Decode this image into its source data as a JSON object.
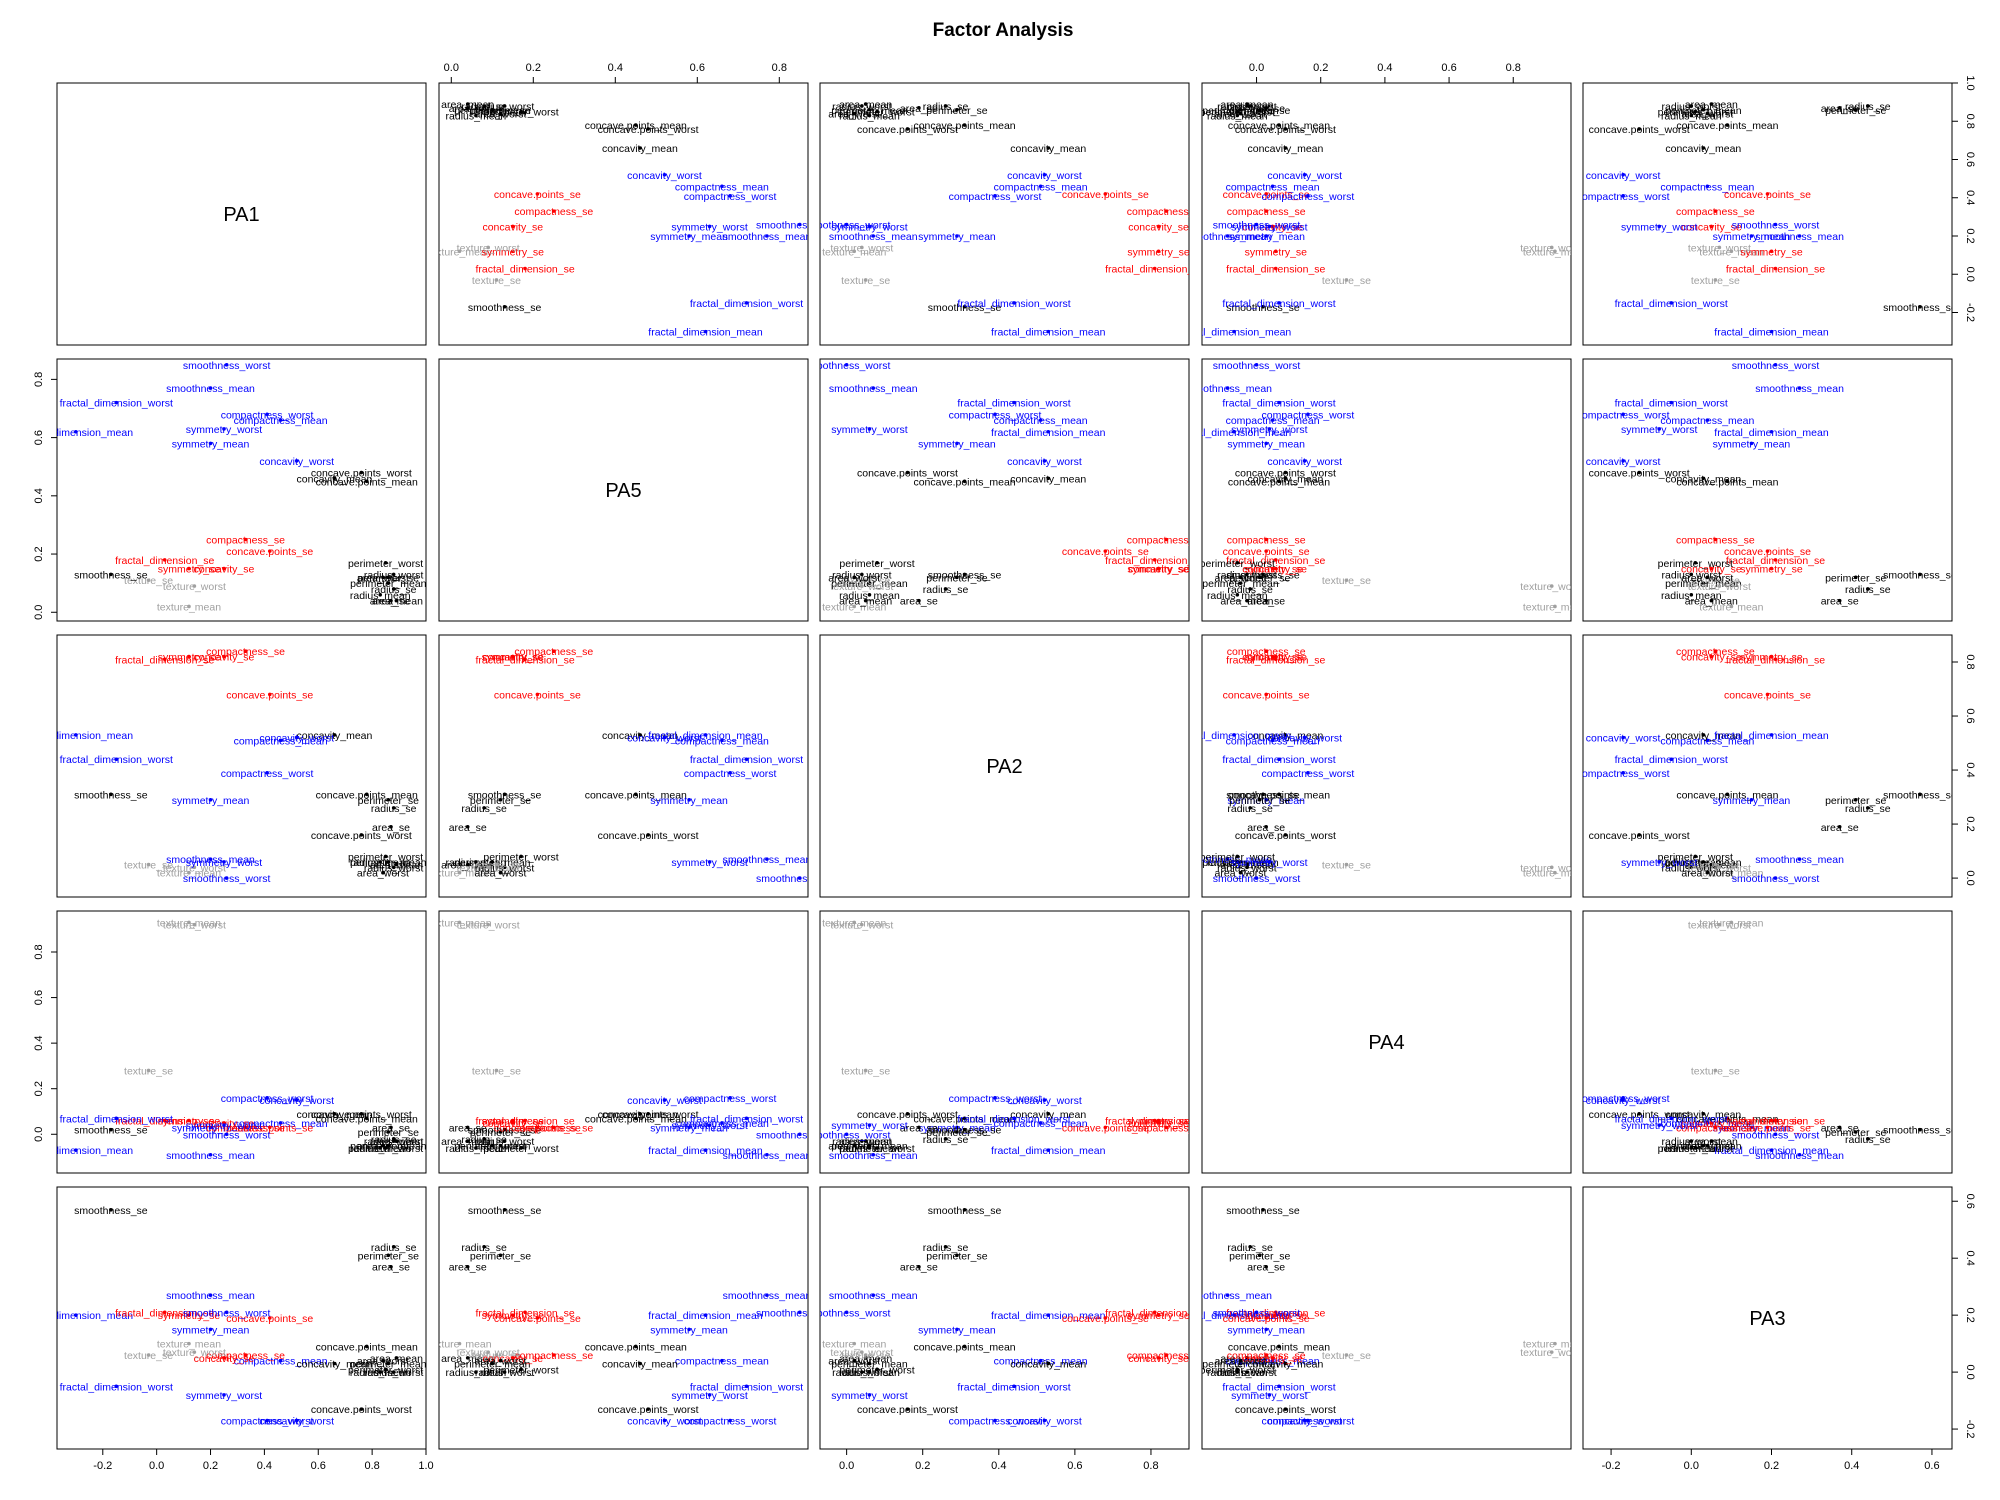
{
  "chart_data": {
    "type": "scatter",
    "title": "Factor Analysis",
    "factors": [
      "PA1",
      "PA5",
      "PA2",
      "PA4",
      "PA3"
    ],
    "axis_ranges": {
      "PA1": [
        -0.37,
        1.0
      ],
      "PA5": [
        -0.03,
        0.87
      ],
      "PA2": [
        -0.07,
        0.9
      ],
      "PA4": [
        -0.17,
        0.98
      ],
      "PA3": [
        -0.27,
        0.65
      ]
    },
    "ticks": {
      "PA1": {
        "values": [
          -0.2,
          0.0,
          0.2,
          0.4,
          0.6,
          0.8,
          1.0
        ],
        "labels": [
          "-0.2",
          "0.0",
          "0.2",
          "0.4",
          "0.6",
          "0.8",
          "1.0"
        ]
      },
      "PA5": {
        "values": [
          0.0,
          0.2,
          0.4,
          0.6,
          0.8
        ],
        "labels": [
          "0.0",
          "0.2",
          "0.4",
          "0.6",
          "0.8"
        ]
      },
      "PA2": {
        "values": [
          0.0,
          0.2,
          0.4,
          0.6,
          0.8
        ],
        "labels": [
          "0.0",
          "0.2",
          "0.4",
          "0.6",
          "0.8"
        ]
      },
      "PA4": {
        "values": [
          0.0,
          0.2,
          0.4,
          0.6,
          0.8
        ],
        "labels": [
          "0.0",
          "0.2",
          "0.4",
          "0.6",
          "0.8"
        ]
      },
      "PA3": {
        "values": [
          -0.2,
          0.0,
          0.2,
          0.4,
          0.6
        ],
        "labels": [
          "-0.2",
          "0.0",
          "0.2",
          "0.4",
          "0.6"
        ]
      }
    },
    "tick_placement": {
      "PA1": [
        "bottom",
        "right"
      ],
      "PA5": [
        "top",
        "left"
      ],
      "PA2": [
        "bottom",
        "right"
      ],
      "PA4": [
        "top",
        "left"
      ],
      "PA3": [
        "bottom",
        "right"
      ]
    },
    "colors": {
      "black": "#000000",
      "red": "#ff0000",
      "blue": "#0000ff",
      "gray": "#a0a0a0"
    },
    "variables": [
      {
        "name": "radius_mean",
        "color": "black",
        "loadings": [
          0.83,
          0.06,
          0.06,
          -0.06,
          0.0
        ]
      },
      {
        "name": "texture_mean",
        "color": "gray",
        "loadings": [
          0.12,
          0.02,
          0.02,
          0.93,
          0.1
        ]
      },
      {
        "name": "perimeter_mean",
        "color": "black",
        "loadings": [
          0.86,
          0.1,
          0.06,
          -0.05,
          0.03
        ]
      },
      {
        "name": "area_mean",
        "color": "black",
        "loadings": [
          0.89,
          0.04,
          0.05,
          -0.03,
          0.05
        ]
      },
      {
        "name": "smoothness_mean",
        "color": "blue",
        "loadings": [
          0.2,
          0.77,
          0.07,
          -0.09,
          0.27
        ]
      },
      {
        "name": "compactness_mean",
        "color": "blue",
        "loadings": [
          0.46,
          0.66,
          0.51,
          0.05,
          0.04
        ]
      },
      {
        "name": "concavity_mean",
        "color": "black",
        "loadings": [
          0.66,
          0.46,
          0.53,
          0.09,
          0.03
        ]
      },
      {
        "name": "concave.points_mean",
        "color": "black",
        "loadings": [
          0.78,
          0.45,
          0.31,
          0.07,
          0.09
        ]
      },
      {
        "name": "symmetry_mean",
        "color": "blue",
        "loadings": [
          0.2,
          0.58,
          0.29,
          0.03,
          0.15
        ]
      },
      {
        "name": "fractal_dimension_mean",
        "color": "blue",
        "loadings": [
          -0.3,
          0.62,
          0.53,
          -0.07,
          0.2
        ]
      },
      {
        "name": "radius_se",
        "color": "black",
        "loadings": [
          0.88,
          0.08,
          0.26,
          -0.02,
          0.44
        ]
      },
      {
        "name": "texture_se",
        "color": "gray",
        "loadings": [
          -0.03,
          0.11,
          0.05,
          0.28,
          0.06
        ]
      },
      {
        "name": "perimeter_se",
        "color": "black",
        "loadings": [
          0.86,
          0.12,
          0.29,
          0.01,
          0.41
        ]
      },
      {
        "name": "area_se",
        "color": "black",
        "loadings": [
          0.87,
          0.04,
          0.19,
          0.03,
          0.37
        ]
      },
      {
        "name": "smoothness_se",
        "color": "black",
        "loadings": [
          -0.17,
          0.13,
          0.31,
          0.02,
          0.57
        ]
      },
      {
        "name": "compactness_se",
        "color": "red",
        "loadings": [
          0.33,
          0.25,
          0.84,
          0.03,
          0.06
        ]
      },
      {
        "name": "concavity_se",
        "color": "red",
        "loadings": [
          0.25,
          0.15,
          0.82,
          0.05,
          0.05
        ]
      },
      {
        "name": "concave.points_se",
        "color": "red",
        "loadings": [
          0.42,
          0.21,
          0.68,
          0.03,
          0.19
        ]
      },
      {
        "name": "symmetry_se",
        "color": "red",
        "loadings": [
          0.12,
          0.15,
          0.82,
          0.06,
          0.2
        ]
      },
      {
        "name": "fractal_dimension_se",
        "color": "red",
        "loadings": [
          0.03,
          0.18,
          0.81,
          0.06,
          0.21
        ]
      },
      {
        "name": "radius_worst",
        "color": "black",
        "loadings": [
          0.88,
          0.13,
          0.04,
          -0.03,
          0.0
        ]
      },
      {
        "name": "texture_worst",
        "color": "gray",
        "loadings": [
          0.14,
          0.09,
          0.04,
          0.92,
          0.07
        ]
      },
      {
        "name": "perimeter_worst",
        "color": "black",
        "loadings": [
          0.85,
          0.17,
          0.08,
          -0.06,
          0.01
        ]
      },
      {
        "name": "area_worst",
        "color": "black",
        "loadings": [
          0.84,
          0.12,
          0.02,
          -0.05,
          0.04
        ]
      },
      {
        "name": "smoothness_worst",
        "color": "blue",
        "loadings": [
          0.26,
          0.85,
          0.0,
          0.0,
          0.21
        ]
      },
      {
        "name": "compactness_worst",
        "color": "blue",
        "loadings": [
          0.41,
          0.68,
          0.39,
          0.16,
          -0.17
        ]
      },
      {
        "name": "concavity_worst",
        "color": "blue",
        "loadings": [
          0.52,
          0.52,
          0.52,
          0.15,
          -0.17
        ]
      },
      {
        "name": "concave.points_worst",
        "color": "black",
        "loadings": [
          0.76,
          0.48,
          0.16,
          0.09,
          -0.13
        ]
      },
      {
        "name": "symmetry_worst",
        "color": "blue",
        "loadings": [
          0.25,
          0.63,
          0.06,
          0.04,
          -0.08
        ]
      },
      {
        "name": "fractal_dimension_worst",
        "color": "blue",
        "loadings": [
          -0.15,
          0.72,
          0.44,
          0.07,
          -0.05
        ]
      }
    ]
  }
}
